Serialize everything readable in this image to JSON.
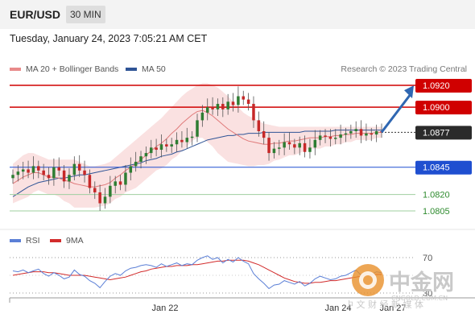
{
  "header": {
    "symbol": "EUR/USD",
    "timeframe": "30 MIN"
  },
  "datetime": "Tuesday, January 24, 2023 7:05:21 AM CET",
  "legend": [
    {
      "label": "MA 20 + Bollinger Bands",
      "color": "#e88a8a"
    },
    {
      "label": "MA 50",
      "color": "#2f5496"
    }
  ],
  "credit": "Research © 2023 Trading Central",
  "rsi_legend": [
    {
      "label": "RSI",
      "color": "#5b7fd6"
    },
    {
      "label": "9MA",
      "color": "#d22b2b"
    }
  ],
  "watermark": {
    "brand": "中金网",
    "site": "CNGOLD.COM.CN",
    "tagline": "中 文 财 经 新 媒 体"
  },
  "chart_data": {
    "type": "line",
    "title": "EUR/USD 30 MIN",
    "xlabel": "",
    "ylabel": "",
    "ylim": [
      1.0795,
      1.0935
    ],
    "x_ticks": [
      "Jan 22",
      "Jan 24",
      "Jan 27"
    ],
    "current_price": "1.0877",
    "levels": [
      {
        "value": 1.092,
        "label": "1.0920",
        "type": "resistance",
        "color": "#d00000"
      },
      {
        "value": 1.09,
        "label": "1.0900",
        "type": "resistance",
        "color": "#d00000"
      },
      {
        "value": 1.0845,
        "label": "1.0845",
        "type": "support",
        "color": "#1f4fd0"
      },
      {
        "value": 1.082,
        "label": "1.0820",
        "type": "target",
        "color": "#2e8b2e"
      },
      {
        "value": 1.0805,
        "label": "1.0805",
        "type": "target",
        "color": "#2e8b2e"
      }
    ],
    "arrow": {
      "from": 1.0877,
      "to": 1.0917,
      "color": "#2f67b2"
    },
    "close_series": [
      1.0838,
      1.0841,
      1.0843,
      1.084,
      1.0846,
      1.0842,
      1.0838,
      1.0835,
      1.0845,
      1.0842,
      1.0832,
      1.0838,
      1.0848,
      1.0842,
      1.0838,
      1.0826,
      1.0822,
      1.0812,
      1.0818,
      1.0828,
      1.0832,
      1.0829,
      1.084,
      1.0846,
      1.085,
      1.0855,
      1.0858,
      1.0863,
      1.0861,
      1.0866,
      1.0864,
      1.0866,
      1.087,
      1.0868,
      1.0872,
      1.0873,
      1.0888,
      1.0895,
      1.09,
      1.0898,
      1.0903,
      1.0898,
      1.0905,
      1.0902,
      1.091,
      1.0907,
      1.0903,
      1.0888,
      1.0878,
      1.0872,
      1.0858,
      1.0862,
      1.0863,
      1.0868,
      1.0866,
      1.0863,
      1.0867,
      1.0859,
      1.0863,
      1.087,
      1.0874,
      1.0873,
      1.0871,
      1.0872,
      1.0875,
      1.0876,
      1.0878,
      1.088,
      1.0874,
      1.0876,
      1.0875,
      1.0878,
      1.0877
    ],
    "ma20": [
      1.083,
      1.0833,
      1.0836,
      1.0838,
      1.084,
      1.084,
      1.0838,
      1.0836,
      1.0836,
      1.0835,
      1.0833,
      1.0832,
      1.083,
      1.0829,
      1.0828,
      1.0827,
      1.0827,
      1.0828,
      1.0829,
      1.0831,
      1.0835,
      1.0838,
      1.0842,
      1.0845,
      1.0848,
      1.0852,
      1.0856,
      1.086,
      1.0864,
      1.0867,
      1.0871,
      1.0876,
      1.088,
      1.0885,
      1.0889,
      1.0893,
      1.0896,
      1.0897,
      1.0895,
      1.0892,
      1.0888,
      1.0884,
      1.088,
      1.0877,
      1.0874,
      1.0871,
      1.0869,
      1.0868,
      1.0867,
      1.0866,
      1.0866,
      1.0867,
      1.0867,
      1.0868,
      1.0869,
      1.0869,
      1.087,
      1.0871,
      1.0872,
      1.0872,
      1.0872,
      1.0873,
      1.0873,
      1.0874,
      1.0874,
      1.0875,
      1.0875,
      1.0876,
      1.0876,
      1.0876,
      1.0876,
      1.0877,
      1.0877
    ],
    "ma50": [
      1.0818,
      1.0821,
      1.0824,
      1.0827,
      1.0829,
      1.0831,
      1.0832,
      1.0833,
      1.0834,
      1.0835,
      1.0835,
      1.0836,
      1.0837,
      1.0838,
      1.0838,
      1.0839,
      1.084,
      1.0841,
      1.0842,
      1.0843,
      1.0844,
      1.0845,
      1.0846,
      1.0847,
      1.0848,
      1.0849,
      1.0851,
      1.0852,
      1.0853,
      1.0855,
      1.0856,
      1.0857,
      1.0859,
      1.086,
      1.0862,
      1.0864,
      1.0866,
      1.0868,
      1.087,
      1.0871,
      1.0872,
      1.0873,
      1.0874,
      1.0874,
      1.0875,
      1.0875,
      1.0876,
      1.0876,
      1.0876,
      1.0877,
      1.0877,
      1.0877,
      1.0877,
      1.0877,
      1.0877,
      1.0877,
      1.0877,
      1.0878,
      1.0878,
      1.0878,
      1.0878,
      1.0878,
      1.0878,
      1.0879,
      1.0879,
      1.0879,
      1.0879,
      1.0879,
      1.0879,
      1.0879,
      1.0879,
      1.0879,
      1.0879
    ],
    "bb_upper": [
      1.0848,
      1.0852,
      1.0856,
      1.0858,
      1.0858,
      1.0856,
      1.0854,
      1.0852,
      1.0852,
      1.0852,
      1.0852,
      1.0852,
      1.0852,
      1.085,
      1.0848,
      1.0846,
      1.0846,
      1.0847,
      1.0848,
      1.085,
      1.0854,
      1.0858,
      1.0862,
      1.0866,
      1.087,
      1.0874,
      1.0878,
      1.0882,
      1.0886,
      1.089,
      1.0895,
      1.09,
      1.0905,
      1.091,
      1.0914,
      1.0917,
      1.092,
      1.0922,
      1.0922,
      1.092,
      1.0918,
      1.0914,
      1.091,
      1.0905,
      1.09,
      1.0895,
      1.0892,
      1.089,
      1.0887,
      1.0885,
      1.0884,
      1.0883,
      1.0882,
      1.0882,
      1.0882,
      1.0882,
      1.0882,
      1.0882,
      1.0882,
      1.0882,
      1.0882,
      1.0882,
      1.0882,
      1.0882,
      1.0882,
      1.0882,
      1.0882,
      1.0882,
      1.0882,
      1.0882,
      1.0882,
      1.0882,
      1.0882
    ],
    "bb_lower": [
      1.0812,
      1.0814,
      1.0816,
      1.0818,
      1.0822,
      1.0824,
      1.0822,
      1.082,
      1.082,
      1.0818,
      1.0814,
      1.0812,
      1.0808,
      1.0808,
      1.0808,
      1.0808,
      1.0808,
      1.0809,
      1.081,
      1.0812,
      1.0816,
      1.0818,
      1.0822,
      1.0824,
      1.0826,
      1.083,
      1.0834,
      1.0838,
      1.0842,
      1.0844,
      1.0847,
      1.0852,
      1.0855,
      1.086,
      1.0864,
      1.0869,
      1.0872,
      1.0872,
      1.0868,
      1.0864,
      1.0858,
      1.0854,
      1.085,
      1.0849,
      1.0848,
      1.0847,
      1.0846,
      1.0846,
      1.0847,
      1.0847,
      1.0848,
      1.0851,
      1.0852,
      1.0854,
      1.0856,
      1.0856,
      1.0858,
      1.086,
      1.0862,
      1.0862,
      1.0862,
      1.0864,
      1.0864,
      1.0866,
      1.0866,
      1.0868,
      1.0868,
      1.087,
      1.087,
      1.087,
      1.087,
      1.0872,
      1.0872
    ],
    "rsi": {
      "ylim": [
        20,
        80
      ],
      "levels": [
        70,
        30
      ],
      "level_labels": [
        "70",
        "30"
      ],
      "rsi": [
        55,
        54,
        56,
        53,
        55,
        57,
        52,
        49,
        53,
        50,
        46,
        48,
        56,
        51,
        49,
        44,
        41,
        36,
        43,
        49,
        52,
        50,
        55,
        58,
        59,
        61,
        62,
        61,
        59,
        63,
        60,
        62,
        64,
        61,
        63,
        62,
        67,
        70,
        72,
        68,
        70,
        64,
        68,
        65,
        70,
        66,
        63,
        52,
        46,
        41,
        35,
        39,
        40,
        44,
        42,
        40,
        43,
        38,
        41,
        46,
        49,
        47,
        45,
        46,
        49,
        50,
        53,
        56,
        50,
        52,
        51,
        54,
        53
      ],
      "ma9": [
        50,
        51,
        52,
        53,
        54,
        54,
        54,
        53,
        53,
        52,
        51,
        50,
        50,
        50,
        50,
        49,
        48,
        47,
        46,
        45,
        46,
        47,
        48,
        50,
        52,
        54,
        55,
        57,
        58,
        59,
        60,
        60,
        61,
        61,
        61,
        62,
        62,
        63,
        64,
        65,
        66,
        66,
        67,
        67,
        67,
        67,
        66,
        64,
        62,
        59,
        56,
        53,
        50,
        47,
        45,
        43,
        42,
        41,
        41,
        42,
        42,
        43,
        44,
        44,
        45,
        46,
        47,
        48,
        49,
        50,
        50,
        51,
        51
      ]
    }
  }
}
